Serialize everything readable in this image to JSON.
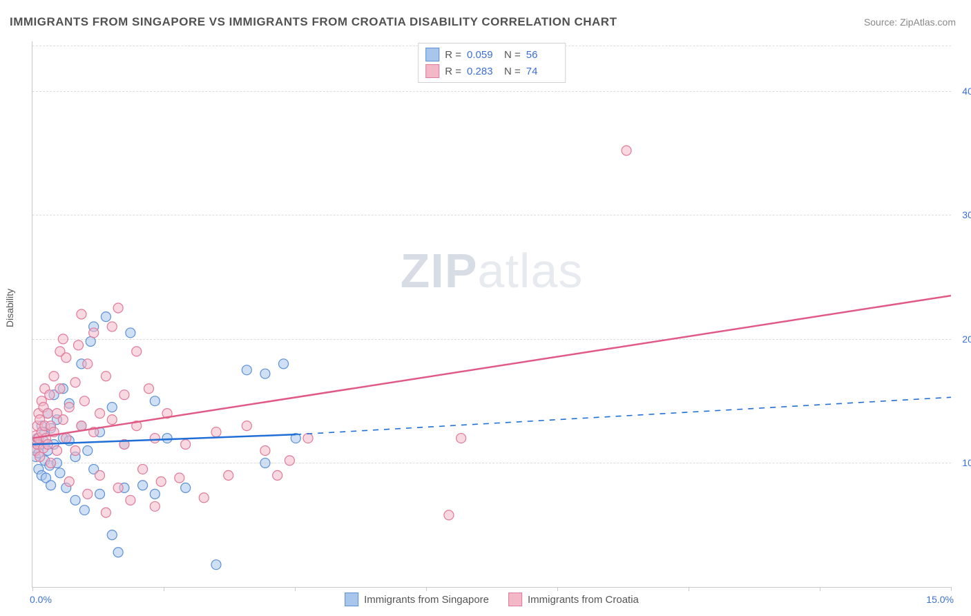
{
  "title": "IMMIGRANTS FROM SINGAPORE VS IMMIGRANTS FROM CROATIA DISABILITY CORRELATION CHART",
  "source_label": "Source: ",
  "source_name": "ZipAtlas.com",
  "y_axis_label": "Disability",
  "watermark_zip": "ZIP",
  "watermark_atlas": "atlas",
  "chart": {
    "type": "scatter-with-regression",
    "xlim": [
      0,
      15
    ],
    "ylim": [
      0,
      44
    ],
    "x_unit": "%",
    "y_unit": "%",
    "x_ticks": [
      0,
      2.14,
      4.29,
      6.43,
      8.57,
      10.71,
      12.86,
      15
    ],
    "x_tick_labels_shown": {
      "0": "0.0%",
      "15": "15.0%"
    },
    "y_gridlines": [
      10,
      20,
      30,
      40
    ],
    "y_tick_labels": {
      "10": "10.0%",
      "20": "20.0%",
      "30": "30.0%",
      "40": "40.0%"
    },
    "grid_color": "#dcdcdc",
    "axis_color": "#c9c9c9",
    "background_color": "#ffffff",
    "label_color": "#3b6fd6",
    "marker_radius": 7,
    "marker_opacity": 0.55,
    "line_width": 2.5,
    "series": [
      {
        "name": "Immigrants from Singapore",
        "color_fill": "#a8c6ec",
        "color_stroke": "#5b8fd6",
        "line_color": "#1f6fd6",
        "R": 0.059,
        "N": 56,
        "regression": {
          "x1": 0,
          "y1": 11.5,
          "x2_solid": 4.3,
          "y2_solid": 12.3,
          "x2_dash": 15,
          "y2_dash": 15.3
        },
        "points": [
          [
            0.05,
            10.5
          ],
          [
            0.05,
            11.2
          ],
          [
            0.08,
            12.0
          ],
          [
            0.1,
            9.5
          ],
          [
            0.1,
            10.8
          ],
          [
            0.12,
            11.5
          ],
          [
            0.15,
            13.0
          ],
          [
            0.15,
            9.0
          ],
          [
            0.18,
            11.8
          ],
          [
            0.2,
            10.2
          ],
          [
            0.2,
            12.5
          ],
          [
            0.22,
            8.8
          ],
          [
            0.25,
            11.0
          ],
          [
            0.25,
            14.0
          ],
          [
            0.28,
            9.8
          ],
          [
            0.3,
            12.8
          ],
          [
            0.3,
            8.2
          ],
          [
            0.35,
            11.5
          ],
          [
            0.35,
            15.5
          ],
          [
            0.4,
            10.0
          ],
          [
            0.4,
            13.5
          ],
          [
            0.45,
            9.2
          ],
          [
            0.5,
            12.0
          ],
          [
            0.5,
            16.0
          ],
          [
            0.55,
            8.0
          ],
          [
            0.6,
            11.8
          ],
          [
            0.6,
            14.8
          ],
          [
            0.7,
            7.0
          ],
          [
            0.7,
            10.5
          ],
          [
            0.8,
            13.0
          ],
          [
            0.8,
            18.0
          ],
          [
            0.85,
            6.2
          ],
          [
            0.9,
            11.0
          ],
          [
            0.95,
            19.8
          ],
          [
            1.0,
            9.5
          ],
          [
            1.0,
            21.0
          ],
          [
            1.1,
            12.5
          ],
          [
            1.1,
            7.5
          ],
          [
            1.2,
            21.8
          ],
          [
            1.3,
            14.5
          ],
          [
            1.3,
            4.2
          ],
          [
            1.4,
            2.8
          ],
          [
            1.5,
            8.0
          ],
          [
            1.5,
            11.5
          ],
          [
            1.6,
            20.5
          ],
          [
            1.8,
            8.2
          ],
          [
            2.0,
            15.0
          ],
          [
            2.0,
            7.5
          ],
          [
            2.2,
            12.0
          ],
          [
            2.5,
            8.0
          ],
          [
            3.0,
            1.8
          ],
          [
            3.5,
            17.5
          ],
          [
            3.8,
            17.2
          ],
          [
            3.8,
            10.0
          ],
          [
            4.1,
            18.0
          ],
          [
            4.3,
            12.0
          ]
        ]
      },
      {
        "name": "Immigrants from Croatia",
        "color_fill": "#f3b8c8",
        "color_stroke": "#e07a9a",
        "line_color": "#e05a85",
        "R": 0.283,
        "N": 74,
        "regression": {
          "x1": 0,
          "y1": 12.0,
          "x2_solid": 15,
          "y2_solid": 23.5
        },
        "points": [
          [
            0.05,
            11.0
          ],
          [
            0.05,
            12.2
          ],
          [
            0.08,
            13.0
          ],
          [
            0.08,
            11.5
          ],
          [
            0.1,
            14.0
          ],
          [
            0.1,
            12.0
          ],
          [
            0.12,
            10.5
          ],
          [
            0.12,
            13.5
          ],
          [
            0.15,
            12.5
          ],
          [
            0.15,
            15.0
          ],
          [
            0.18,
            11.2
          ],
          [
            0.18,
            14.5
          ],
          [
            0.2,
            13.0
          ],
          [
            0.2,
            16.0
          ],
          [
            0.22,
            12.0
          ],
          [
            0.25,
            14.0
          ],
          [
            0.25,
            11.5
          ],
          [
            0.28,
            15.5
          ],
          [
            0.3,
            13.0
          ],
          [
            0.3,
            10.0
          ],
          [
            0.35,
            12.5
          ],
          [
            0.35,
            17.0
          ],
          [
            0.4,
            14.0
          ],
          [
            0.4,
            11.0
          ],
          [
            0.45,
            16.0
          ],
          [
            0.45,
            19.0
          ],
          [
            0.5,
            13.5
          ],
          [
            0.5,
            20.0
          ],
          [
            0.55,
            12.0
          ],
          [
            0.55,
            18.5
          ],
          [
            0.6,
            14.5
          ],
          [
            0.6,
            8.5
          ],
          [
            0.7,
            16.5
          ],
          [
            0.7,
            11.0
          ],
          [
            0.75,
            19.5
          ],
          [
            0.8,
            13.0
          ],
          [
            0.8,
            22.0
          ],
          [
            0.85,
            15.0
          ],
          [
            0.9,
            7.5
          ],
          [
            0.9,
            18.0
          ],
          [
            1.0,
            12.5
          ],
          [
            1.0,
            20.5
          ],
          [
            1.1,
            14.0
          ],
          [
            1.1,
            9.0
          ],
          [
            1.2,
            17.0
          ],
          [
            1.2,
            6.0
          ],
          [
            1.3,
            13.5
          ],
          [
            1.3,
            21.0
          ],
          [
            1.4,
            8.0
          ],
          [
            1.4,
            22.5
          ],
          [
            1.5,
            11.5
          ],
          [
            1.5,
            15.5
          ],
          [
            1.6,
            7.0
          ],
          [
            1.7,
            13.0
          ],
          [
            1.7,
            19.0
          ],
          [
            1.8,
            9.5
          ],
          [
            1.9,
            16.0
          ],
          [
            2.0,
            6.5
          ],
          [
            2.0,
            12.0
          ],
          [
            2.1,
            8.5
          ],
          [
            2.2,
            14.0
          ],
          [
            2.4,
            8.8
          ],
          [
            2.5,
            11.5
          ],
          [
            2.8,
            7.2
          ],
          [
            3.0,
            12.5
          ],
          [
            3.2,
            9.0
          ],
          [
            3.5,
            13.0
          ],
          [
            3.8,
            11.0
          ],
          [
            4.0,
            9.0
          ],
          [
            4.2,
            10.2
          ],
          [
            4.5,
            12.0
          ],
          [
            6.8,
            5.8
          ],
          [
            7.0,
            12.0
          ],
          [
            9.7,
            35.2
          ]
        ]
      }
    ]
  },
  "legend_top": {
    "r_label": "R =",
    "n_label": "N ="
  },
  "legend_bottom": [
    {
      "label": "Immigrants from Singapore",
      "fill": "#a8c6ec",
      "stroke": "#5b8fd6"
    },
    {
      "label": "Immigrants from Croatia",
      "fill": "#f3b8c8",
      "stroke": "#e07a9a"
    }
  ]
}
